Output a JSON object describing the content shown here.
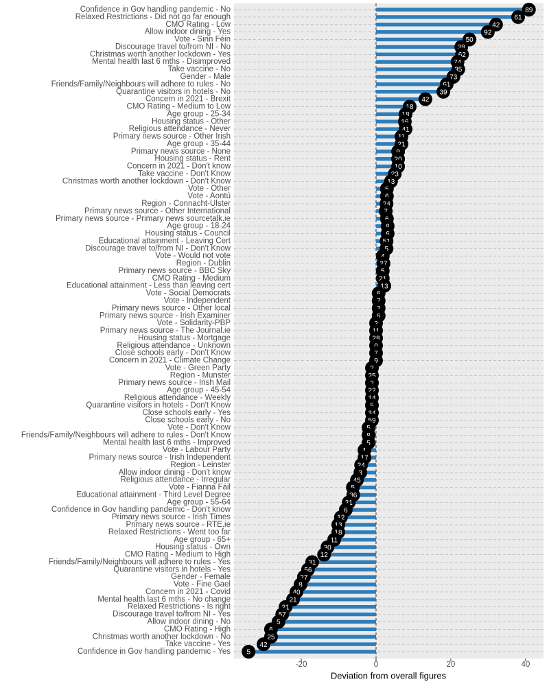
{
  "chart_data": {
    "type": "bar",
    "orientation": "horizontal",
    "x_label": "Deviation from overall figures",
    "categories": [
      "Confidence in Gov handling pandemic - No",
      "Relaxed Restrictions - Did not go far enough",
      "CMO Rating - Low",
      "Allow indoor dining - Yes",
      "Vote - Sinn Féin",
      "Discourage travel to/from NI - No",
      "Christmas worth another lockdown - Yes",
      "Mental health last 6 mths - Disimproved",
      "Take vaccine - No",
      "Gender - Male",
      "Friends/Family/Neighbours will adhere to rules - No",
      "Quarantine visitors in hotels - No",
      "Concern in 2021 - Brexit",
      "CMO Rating - Medium to Low",
      "Age group - 25-34",
      "Housing status - Other",
      "Religious attendance - Never",
      "Primary news source - Other Irish",
      "Age group - 35-44",
      "Primary news source - None",
      "Housing status - Rent",
      "Concern in 2021 - Don't know",
      "Take vaccine - Don't Know",
      "Christmas worth another lockdown - Don't Know",
      "Vote - Other",
      "Vote - Aontú",
      "Region - Connacht-Ulster",
      "Primary news source - Other International",
      "Primary news source - Primary news sourcetalk.ie",
      "Age group - 18-24",
      "Housing status - Council",
      "Educational attainment - Leaving Cert",
      "Discourage travel to/from NI - Don't Know",
      "Vote - Would not vote",
      "Region - Dublin",
      "Primary news source - BBC Sky",
      "CMO Rating - Medium",
      "Educational attainment - Less than leaving cert",
      "Vote - Social Democrats",
      "Vote - Independent",
      "Primary news source - Other local",
      "Primary news source - Irish Examiner",
      "Vote - Solidarity-PBP",
      "Primary news source - The Journal.ie",
      "Housing status - Mortgage",
      "Religious attendance - Unknown",
      "Close schools early - Don't Know",
      "Concern in 2021 - Climate Change",
      "Vote - Green Party",
      "Region - Munster",
      "Primary news source - Irish Mail",
      "Age group - 45-54",
      "Religious attendance - Weekly",
      "Quarantine visitors in hotels - Don't Know",
      "Close schools early - Yes",
      "Close schools early - No",
      "Vote - Don't Know",
      "Friends/Family/Neighbours will adhere to rules - Don't Know",
      "Mental health last 6 mths - Improved",
      "Vote - Labour Party",
      "Primary news source - Irish Independent",
      "Region - Leinster",
      "Allow indoor dining - Don't know",
      "Religious attendance - Irregular",
      "Vote - Fianna Fáil",
      "Educational attainment - Third Level Degree",
      "Age group - 55-64",
      "Confidence in Gov handling pandemic - Don't know",
      "Primary news source - Irish Times",
      "Primary news source - RTE.ie",
      "Relaxed Restrictions - Went too far",
      "Age group - 65+",
      "Housing status - Own",
      "CMO Rating - Medium to High",
      "Friends/Family/Neighbours will adhere to rules - Yes",
      "Quarantine visitors in hotels - Yes",
      "Gender - Female",
      "Vote - Fine Gael",
      "Concern in 2021 - Covid",
      "Mental health last 6 mths - No change",
      "Relaxed Restrictions - Is right",
      "Discourage travel to/from NI - Yes",
      "Allow indoor dining - No",
      "CMO Rating - High",
      "Christmas worth another lockdown - No",
      "Take vaccine - Yes",
      "Confidence in Gov handling pandemic - Yes"
    ],
    "values": [
      40.9,
      38.0,
      32.1,
      29.9,
      25.0,
      22.8,
      23.0,
      21.8,
      22.0,
      20.7,
      18.9,
      18.0,
      13.2,
      9.0,
      7.9,
      7.7,
      7.9,
      6.8,
      6.8,
      5.9,
      5.9,
      5.9,
      5.0,
      4.0,
      2.9,
      2.9,
      2.8,
      2.6,
      2.9,
      3.1,
      3.1,
      2.8,
      2.8,
      1.8,
      2.0,
      1.8,
      1.8,
      2.2,
      0.7,
      0.7,
      0.7,
      0.7,
      0,
      0,
      0,
      0,
      0,
      0,
      -1.1,
      -1.1,
      -1.1,
      -1.1,
      -1.1,
      -1.1,
      -1.1,
      -1.1,
      -2.0,
      -2.0,
      -2.0,
      -3.1,
      -3.1,
      -4.0,
      -4.2,
      -5.1,
      -6.2,
      -6.1,
      -7.3,
      -8.1,
      -9.4,
      -10.1,
      -10.1,
      -11.2,
      -13.0,
      -13.9,
      -17.1,
      -18.2,
      -19.3,
      -20.2,
      -21.3,
      -22.2,
      -24.2,
      -25.1,
      -26.1,
      -28.1,
      -28.1,
      -30.1,
      -34.1
    ],
    "circle_values": [
      89,
      61,
      42,
      92,
      50,
      38,
      62,
      74,
      35,
      73,
      61,
      39,
      42,
      18,
      18,
      16,
      41,
      11,
      21,
      9,
      20,
      10,
      23,
      13,
      5,
      6,
      24,
      7,
      6,
      8,
      6,
      51,
      5,
      4,
      27,
      5,
      21,
      13,
      6,
      7,
      2,
      6,
      2,
      11,
      28,
      0,
      7,
      9,
      2,
      25,
      2,
      22,
      14,
      5,
      34,
      59,
      5,
      8,
      5,
      1,
      17,
      24,
      3,
      45,
      5,
      36,
      21,
      6,
      12,
      13,
      18,
      11,
      30,
      12,
      31,
      56,
      27,
      8,
      40,
      21,
      21,
      57,
      5,
      6,
      25,
      42,
      5
    ],
    "color": "#2e7ebb",
    "circle_color": "#000000",
    "xlim": [
      -38,
      44.8
    ],
    "xticks": [
      -20,
      0,
      20,
      40
    ],
    "grid": true
  }
}
